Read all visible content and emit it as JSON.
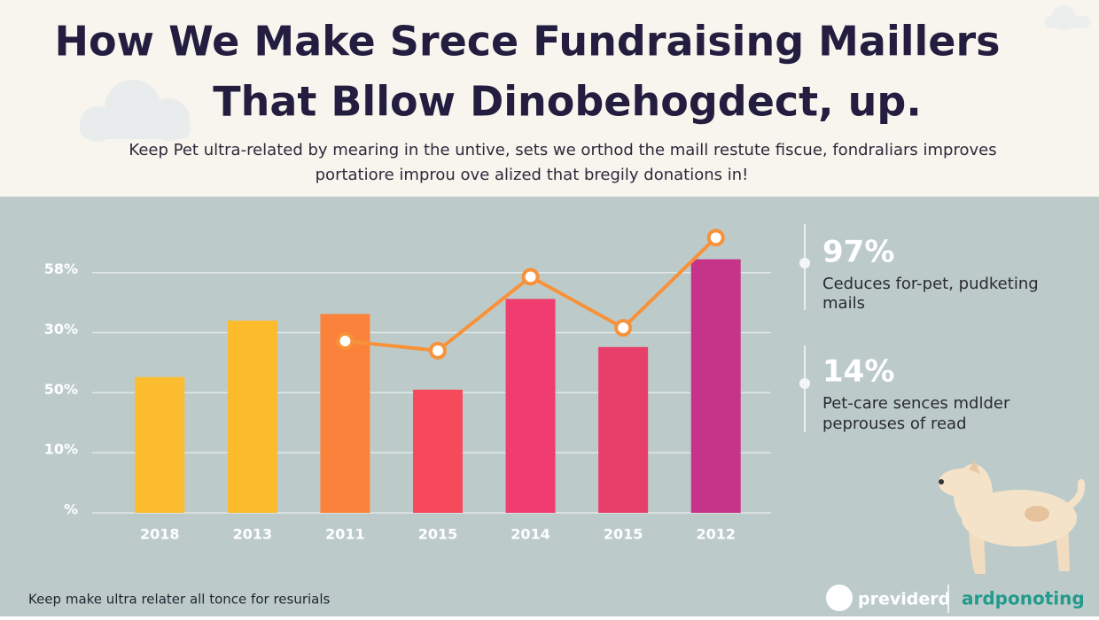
{
  "title_lines": [
    "How We Make Srece Fundraising Maillers",
    "That Bllow Dinobehogdect, up."
  ],
  "subtitle_lines": [
    "Keep Pet ultra-related by mearing in the untive, sets we orthod the maill restute fiscue, fondraliars improves",
    "portatiore improu ove alized that bregily donations in!"
  ],
  "chart_data": {
    "type": "bar",
    "categories": [
      "2018",
      "2013",
      "2011",
      "2015",
      "2014",
      "2015",
      "2012"
    ],
    "values": [
      2.26,
      3.2,
      3.31,
      2.05,
      3.56,
      2.76,
      4.22
    ],
    "colors": [
      "#fbbd2f",
      "#fbbb2b",
      "#fb823a",
      "#f64a5c",
      "#ee3d6e",
      "#e83f6a",
      "#c6348a"
    ],
    "line": {
      "color": "#f7923a",
      "values": [
        null,
        null,
        2.86,
        2.7,
        3.93,
        3.08,
        4.58
      ]
    },
    "ylim": [
      0,
      4.6
    ],
    "yticks": [
      0,
      1,
      2,
      3,
      4
    ],
    "ytick_labels": [
      "%",
      "10%",
      "50%",
      "30%",
      "58%"
    ],
    "grid": true
  },
  "stats": [
    {
      "value": "97%",
      "caption": [
        "Ceduces for-pet, pudketing",
        "mails"
      ]
    },
    {
      "value": "14%",
      "caption": [
        "Pet-care sences mdlder",
        "peprouses of read"
      ]
    }
  ],
  "footer": "Keep make ultra relater all tonce for resurials",
  "brands": [
    "previderd",
    "ardponoting"
  ]
}
